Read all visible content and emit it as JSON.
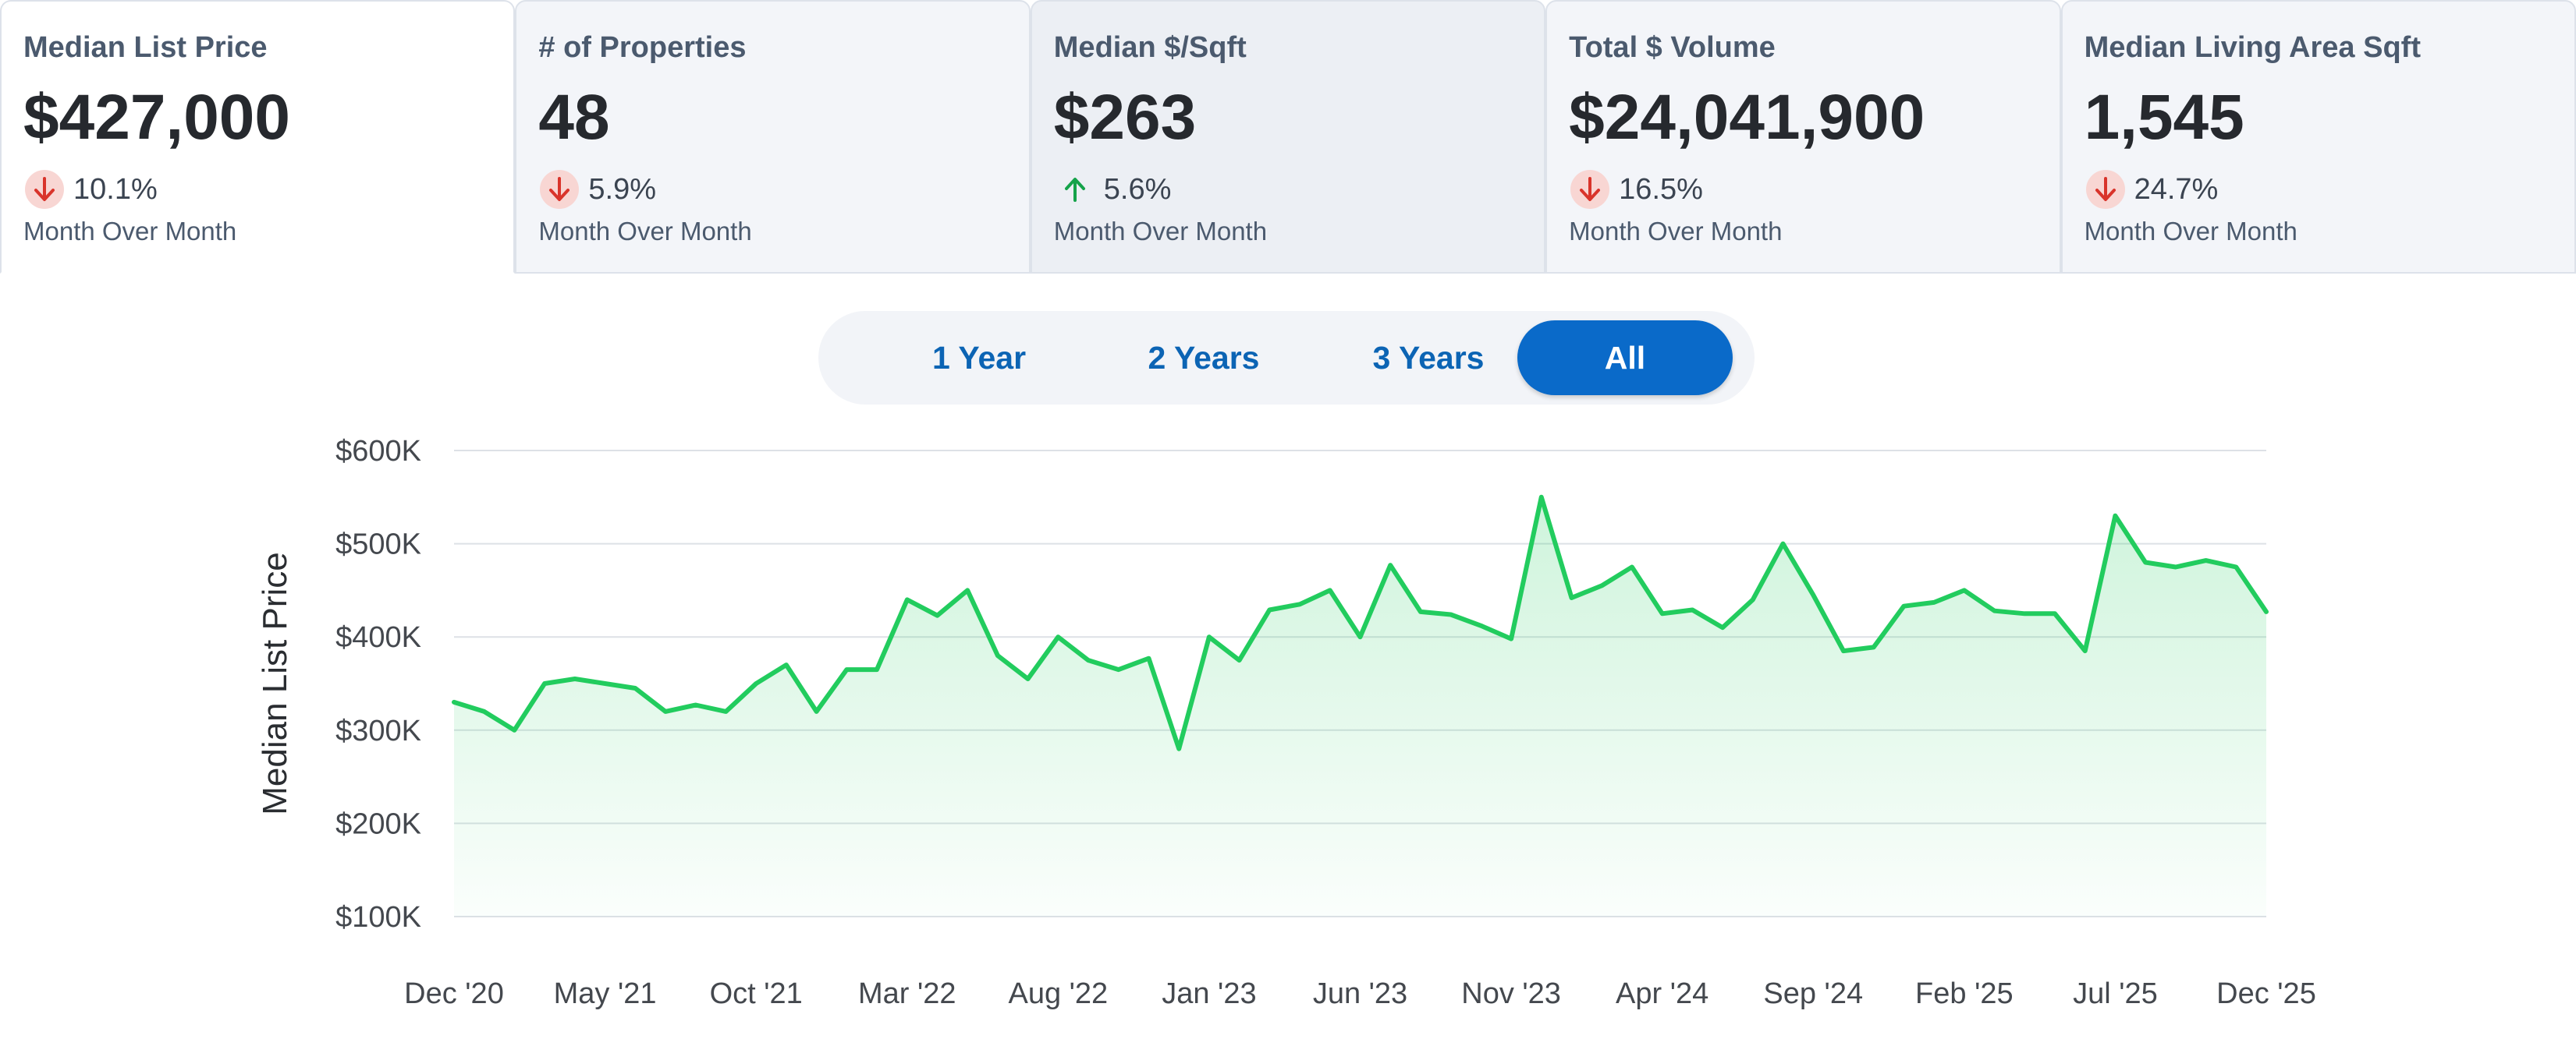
{
  "metrics": [
    {
      "title": "Median List Price",
      "value": "$427,000",
      "direction": "down",
      "change": "10.1%",
      "period": "Month Over Month"
    },
    {
      "title": "# of Properties",
      "value": "48",
      "direction": "down",
      "change": "5.9%",
      "period": "Month Over Month"
    },
    {
      "title": "Median $/Sqft",
      "value": "$263",
      "direction": "up",
      "change": "5.6%",
      "period": "Month Over Month"
    },
    {
      "title": "Total $ Volume",
      "value": "$24,041,900",
      "direction": "down",
      "change": "16.5%",
      "period": "Month Over Month"
    },
    {
      "title": "Median Living Area Sqft",
      "value": "1,545",
      "direction": "down",
      "change": "24.7%",
      "period": "Month Over Month"
    }
  ],
  "range_buttons": [
    "1 Year",
    "2 Years",
    "3 Years",
    "All"
  ],
  "selected_range": "All",
  "colors": {
    "line": "#22cc5e",
    "down_icon": "#d9342b",
    "down_icon_bg": "#f8d6d3",
    "up_icon": "#15a34a",
    "accent": "#0a6ac9"
  },
  "chart_data": {
    "type": "area",
    "title": "",
    "xlabel": "",
    "ylabel": "Median List Price",
    "ylim": [
      100000,
      600000
    ],
    "y_ticks": [
      600000,
      500000,
      400000,
      300000,
      200000,
      100000
    ],
    "y_tick_labels": [
      "$600K",
      "$500K",
      "$400K",
      "$300K",
      "$200K",
      "$100K"
    ],
    "x_tick_labels": [
      "Dec '20",
      "May '21",
      "Oct '21",
      "Mar '22",
      "Aug '22",
      "Jan '23",
      "Jun '23",
      "Nov '23",
      "Apr '24",
      "Sep '24",
      "Feb '25",
      "Jul '25",
      "Dec '25"
    ],
    "x": [
      "Dec '20",
      "Jan '21",
      "Feb '21",
      "Mar '21",
      "Apr '21",
      "May '21",
      "Jun '21",
      "Jul '21",
      "Aug '21",
      "Sep '21",
      "Oct '21",
      "Nov '21",
      "Dec '21",
      "Jan '22",
      "Feb '22",
      "Mar '22",
      "Apr '22",
      "May '22",
      "Jun '22",
      "Jul '22",
      "Aug '22",
      "Sep '22",
      "Oct '22",
      "Nov '22",
      "Dec '22",
      "Jan '23",
      "Feb '23",
      "Mar '23",
      "Apr '23",
      "May '23",
      "Jun '23",
      "Jul '23",
      "Aug '23",
      "Sep '23",
      "Oct '23",
      "Nov '23",
      "Dec '23",
      "Jan '24",
      "Feb '24",
      "Mar '24",
      "Apr '24",
      "May '24",
      "Jun '24",
      "Jul '24",
      "Aug '24",
      "Sep '24",
      "Oct '24",
      "Nov '24",
      "Dec '24",
      "Jan '25",
      "Feb '25",
      "Mar '25",
      "Apr '25",
      "May '25",
      "Jun '25",
      "Jul '25",
      "Aug '25",
      "Sep '25",
      "Oct '25",
      "Nov '25",
      "Dec '25"
    ],
    "series": [
      {
        "name": "",
        "values": [
          330000,
          320000,
          300000,
          350000,
          355000,
          350000,
          345000,
          320000,
          327000,
          320000,
          350000,
          370000,
          320000,
          365000,
          365000,
          440000,
          423000,
          450000,
          380000,
          355000,
          400000,
          375000,
          365000,
          377000,
          280000,
          400000,
          375000,
          429000,
          435000,
          450000,
          400000,
          477000,
          427000,
          424000,
          412000,
          398000,
          550000,
          442000,
          455000,
          475000,
          425000,
          429000,
          410000,
          440000,
          500000,
          445000,
          385000,
          389000,
          433000,
          437000,
          450000,
          428000,
          425000,
          425000,
          385000,
          530000,
          480000,
          475000,
          482000,
          475000,
          427000
        ]
      }
    ],
    "grid": true,
    "legend": "none"
  }
}
